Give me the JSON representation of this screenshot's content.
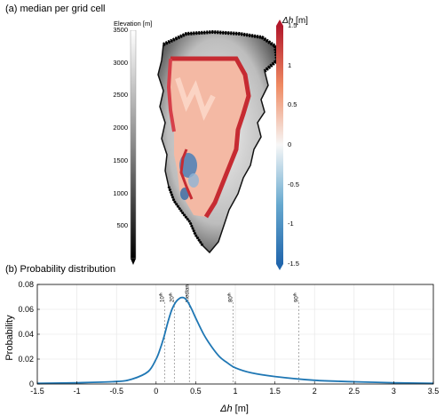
{
  "panel_a": {
    "title": "(a) median per grid cell",
    "elevation_colorbar": {
      "label": "Elevation [m]",
      "ticks": [
        "3500",
        "3000",
        "2500",
        "2000",
        "1500",
        "1000",
        "500"
      ]
    },
    "dh_colorbar": {
      "label_symbol": "Δh",
      "label_unit": " [m]",
      "ticks": [
        "1.5",
        "1",
        "0.5",
        "0",
        "-0.5",
        "-1",
        "-1.5"
      ],
      "colors": {
        "max": "#b2182b",
        "mid": "#f7f7f7",
        "min": "#2166ac"
      }
    }
  },
  "panel_b": {
    "title": "(b) Probability distribution"
  },
  "chart_data": {
    "type": "line",
    "title": "(b) Probability distribution",
    "xlabel_symbol": "Δh",
    "xlabel_unit": " [m]",
    "ylabel": "Probability",
    "xlim": [
      -1.5,
      3.5
    ],
    "ylim": [
      0,
      0.08
    ],
    "grid": true,
    "x_ticks": [
      "-1.5",
      "-1",
      "-0.5",
      "0",
      "0.5",
      "1",
      "1.5",
      "2",
      "2.5",
      "3",
      "3.5"
    ],
    "y_ticks": [
      "0",
      "0.02",
      "0.04",
      "0.06",
      "0.08"
    ],
    "line_color": "#1f77b4",
    "series": [
      {
        "x": [
          -1.5,
          -1.0,
          -0.5,
          -0.3,
          -0.1,
          0.0,
          0.05,
          0.1,
          0.15,
          0.2,
          0.25,
          0.3,
          0.33,
          0.36,
          0.4,
          0.45,
          0.5,
          0.6,
          0.7,
          0.8,
          0.9,
          1.0,
          1.2,
          1.5,
          2.0,
          2.5,
          3.0,
          3.5
        ],
        "y": [
          0.0005,
          0.001,
          0.002,
          0.004,
          0.01,
          0.02,
          0.028,
          0.038,
          0.05,
          0.06,
          0.066,
          0.069,
          0.0695,
          0.069,
          0.066,
          0.06,
          0.053,
          0.04,
          0.03,
          0.022,
          0.017,
          0.013,
          0.009,
          0.006,
          0.003,
          0.0018,
          0.001,
          0.0005
        ]
      }
    ],
    "percentile_lines": [
      {
        "x": 0.11,
        "label": "10",
        "sup": "th"
      },
      {
        "x": 0.23,
        "label": "20",
        "sup": "th"
      },
      {
        "x": 0.42,
        "label": "median",
        "sup": ""
      },
      {
        "x": 0.97,
        "label": "80",
        "sup": "th"
      },
      {
        "x": 1.8,
        "label": "90",
        "sup": "th"
      }
    ]
  }
}
